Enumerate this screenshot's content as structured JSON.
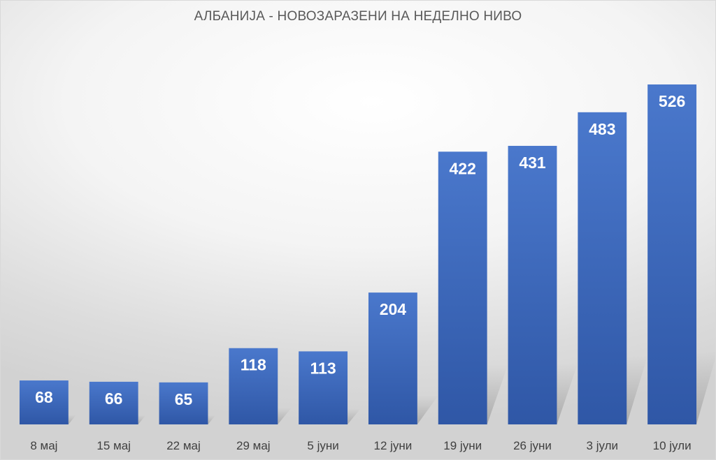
{
  "chart_data": {
    "type": "bar",
    "title": "АЛБАНИЈА - НОВОЗАРАЗЕНИ НА НЕДЕЛНО НИВО",
    "xlabel": "",
    "ylabel": "",
    "categories": [
      "8 мај",
      "15 мај",
      "22 мај",
      "29 мај",
      "5 јуни",
      "12 јуни",
      "19 јуни",
      "26 јуни",
      "3 јули",
      "10 јули"
    ],
    "values": [
      68,
      66,
      65,
      118,
      113,
      204,
      422,
      431,
      483,
      526
    ],
    "ylim": [
      0,
      550
    ],
    "grid": false,
    "legend": "none",
    "data_labels": true,
    "bar_color": "#4472c4",
    "bar_color_dark": "#2f55a4"
  }
}
